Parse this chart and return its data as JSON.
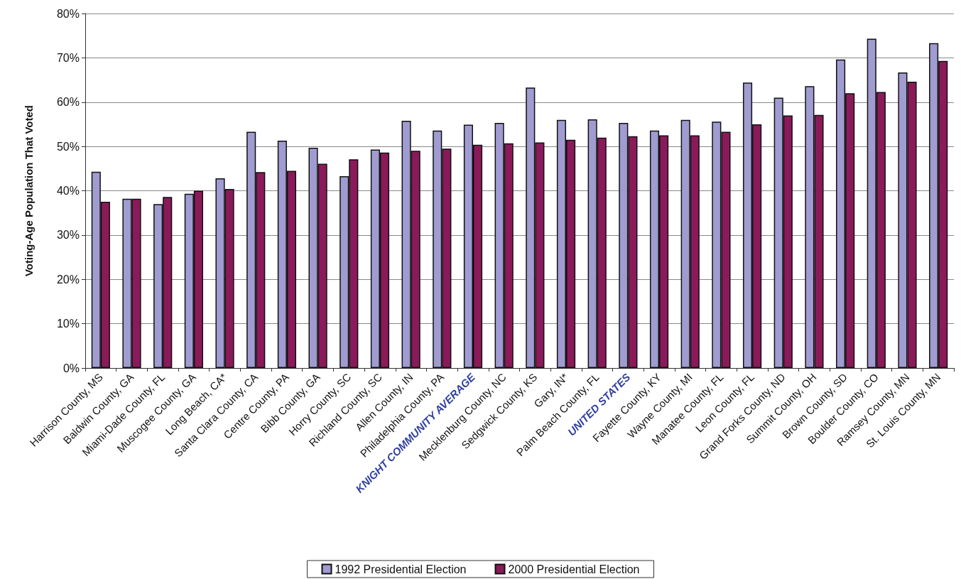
{
  "chart_data": {
    "type": "bar",
    "ylabel": "Voting-Age Population That Voted",
    "categories": [
      "Harrison County, MS",
      "Baldwin County, GA",
      "Miami-Dade County, FL",
      "Muscogee County, GA",
      "Long Beach, CA*",
      "Santa Clara County, CA",
      "Centre County, PA",
      "Bibb County, GA",
      "Horry County, SC",
      "Richland County, SC",
      "Allen County, IN",
      "Philadelphia County, PA",
      "KNIGHT COMMUNITY AVERAGE",
      "Mecklenburg County, NC",
      "Sedgwick County, KS",
      "Gary, IN*",
      "Palm Beach County, FL",
      "UNITED STATES",
      "Fayette County, KY",
      "Wayne County, MI",
      "Manatee County, FL",
      "Leon County, FL",
      "Grand Forks County, ND",
      "Summit County, OH",
      "Brown County, SD",
      "Boulder County, CO",
      "Ramsey County, MN",
      "St. Louis County, MN"
    ],
    "series": [
      {
        "name": "1992 Presidential Election",
        "color": "#a09bd0",
        "values": [
          44.3,
          38.2,
          37.0,
          39.3,
          42.8,
          53.3,
          51.3,
          49.7,
          43.3,
          49.3,
          55.8,
          53.6,
          54.9,
          55.3,
          63.3,
          56.0,
          56.1,
          55.3,
          53.6,
          56.0,
          55.6,
          64.4,
          61.0,
          63.6,
          69.6,
          74.3,
          66.7,
          73.3
        ]
      },
      {
        "name": "2000 Presidential Election",
        "color": "#8b1a5a",
        "values": [
          37.5,
          38.2,
          38.6,
          40.0,
          40.4,
          44.2,
          44.5,
          46.1,
          47.1,
          48.6,
          49.0,
          49.5,
          50.4,
          50.7,
          50.9,
          51.5,
          52.0,
          52.3,
          52.5,
          52.5,
          53.3,
          55.0,
          57.0,
          57.1,
          62.0,
          62.3,
          64.6,
          69.3
        ]
      }
    ],
    "ylim": [
      0,
      80
    ],
    "yticks": [
      {
        "value": 0,
        "label": "0%"
      },
      {
        "value": 10,
        "label": "10%"
      },
      {
        "value": 20,
        "label": "20%"
      },
      {
        "value": 30,
        "label": "30%"
      },
      {
        "value": 40,
        "label": "40%"
      },
      {
        "value": 50,
        "label": "50%"
      },
      {
        "value": 60,
        "label": "60%"
      },
      {
        "value": 70,
        "label": "70%"
      },
      {
        "value": 80,
        "label": "80%"
      }
    ],
    "grid": "y",
    "legend": "bottom"
  }
}
